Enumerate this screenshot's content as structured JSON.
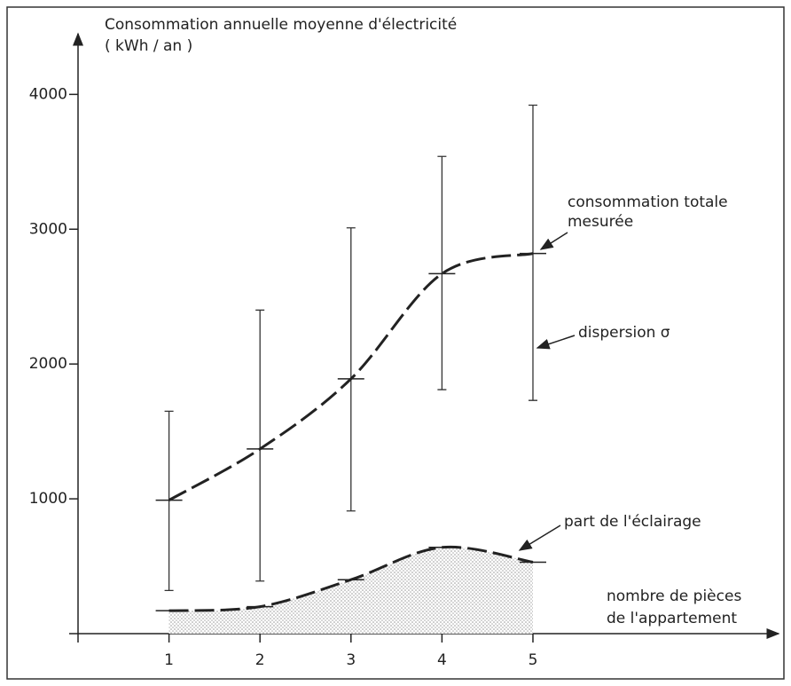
{
  "chart_data": {
    "type": "line",
    "x": [
      1,
      2,
      3,
      4,
      5
    ],
    "xlim": [
      0,
      7.7
    ],
    "xticks": [
      1,
      2,
      3,
      4,
      5
    ],
    "ylim": [
      0,
      4450
    ],
    "yticks": [
      1000,
      2000,
      3000,
      4000
    ],
    "y_label": [
      "Consommation annuelle moyenne d'électricité",
      "( kWh / an )"
    ],
    "x_label": [
      "nombre de pièces",
      "de l'appartement"
    ],
    "series": [
      {
        "color": "#222222",
        "values": [
          990,
          1370,
          1890,
          2670,
          2820
        ],
        "error_low": [
          320,
          390,
          910,
          1810,
          1730
        ],
        "error_high": [
          1650,
          2400,
          3010,
          3540,
          3920
        ]
      },
      {
        "color": "#222222",
        "fill": true,
        "values": [
          170,
          200,
          400,
          640,
          530
        ]
      }
    ],
    "annotations": [
      [
        "consommation totale",
        "mesurée"
      ],
      [
        "dispersion σ"
      ],
      [
        "part de l'éclairage"
      ]
    ]
  }
}
